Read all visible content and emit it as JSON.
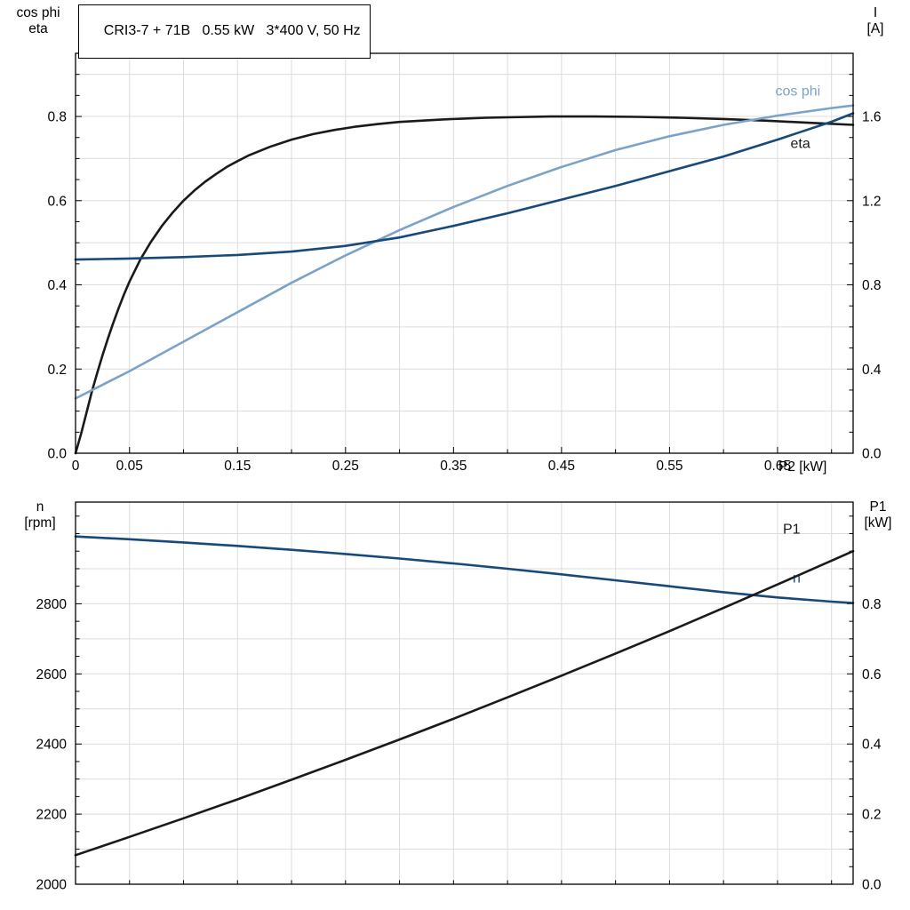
{
  "title_box": {
    "text": "CRI3-7 + 71B   0.55 kW   3*400 V, 50 Hz"
  },
  "colors": {
    "black": "#1a1a1a",
    "cosphi_blue": "#7ba3c9",
    "navy": "#17497a",
    "grid": "#dcdcdc",
    "axis": "#000000"
  },
  "chart_data": [
    {
      "type": "line",
      "name": "motor-performance",
      "x_axis": {
        "label": "P2 [kW]",
        "range": [
          0,
          0.72
        ],
        "grid_step": 0.05,
        "ticks": [
          {
            "v": 0,
            "label": "0"
          },
          {
            "v": 0.05,
            "label": "0.05"
          },
          {
            "v": 0.1,
            "label": ""
          },
          {
            "v": 0.15,
            "label": "0.15"
          },
          {
            "v": 0.2,
            "label": ""
          },
          {
            "v": 0.25,
            "label": "0.25"
          },
          {
            "v": 0.3,
            "label": ""
          },
          {
            "v": 0.35,
            "label": "0.35"
          },
          {
            "v": 0.4,
            "label": ""
          },
          {
            "v": 0.45,
            "label": "0.45"
          },
          {
            "v": 0.5,
            "label": ""
          },
          {
            "v": 0.55,
            "label": "0.55"
          },
          {
            "v": 0.6,
            "label": ""
          },
          {
            "v": 0.65,
            "label": "0.65"
          },
          {
            "v": 0.7,
            "label": ""
          }
        ]
      },
      "left_axis": {
        "title_lines": [
          "cos phi",
          "eta"
        ],
        "range": [
          0,
          0.95
        ],
        "grid_step": 0.1,
        "minor_step": 0.05,
        "ticks": [
          {
            "v": 0,
            "label": "0.0"
          },
          {
            "v": 0.2,
            "label": "0.2"
          },
          {
            "v": 0.4,
            "label": "0.4"
          },
          {
            "v": 0.6,
            "label": "0.6"
          },
          {
            "v": 0.8,
            "label": "0.8"
          }
        ]
      },
      "right_axis": {
        "title_lines": [
          "I",
          "[A]"
        ],
        "range": [
          0,
          1.9
        ],
        "minor_step": 0.1,
        "ticks": [
          {
            "v": 0,
            "label": "0.0"
          },
          {
            "v": 0.4,
            "label": "0.4"
          },
          {
            "v": 0.8,
            "label": "0.8"
          },
          {
            "v": 1.2,
            "label": "1.2"
          },
          {
            "v": 1.6,
            "label": "1.6"
          }
        ]
      },
      "series": [
        {
          "name": "eta",
          "axis": "left",
          "color": "black",
          "label": "eta",
          "label_pos": {
            "x": 0.662,
            "y": 0.725
          },
          "points": [
            [
              0,
              0
            ],
            [
              0.005,
              0.045
            ],
            [
              0.01,
              0.095
            ],
            [
              0.015,
              0.145
            ],
            [
              0.02,
              0.19
            ],
            [
              0.025,
              0.233
            ],
            [
              0.03,
              0.273
            ],
            [
              0.035,
              0.31
            ],
            [
              0.04,
              0.345
            ],
            [
              0.045,
              0.378
            ],
            [
              0.05,
              0.408
            ],
            [
              0.06,
              0.46
            ],
            [
              0.07,
              0.503
            ],
            [
              0.08,
              0.54
            ],
            [
              0.09,
              0.572
            ],
            [
              0.1,
              0.6
            ],
            [
              0.11,
              0.624
            ],
            [
              0.12,
              0.645
            ],
            [
              0.13,
              0.663
            ],
            [
              0.14,
              0.68
            ],
            [
              0.15,
              0.694
            ],
            [
              0.16,
              0.707
            ],
            [
              0.18,
              0.728
            ],
            [
              0.2,
              0.745
            ],
            [
              0.22,
              0.758
            ],
            [
              0.24,
              0.768
            ],
            [
              0.26,
              0.776
            ],
            [
              0.28,
              0.782
            ],
            [
              0.3,
              0.787
            ],
            [
              0.32,
              0.79
            ],
            [
              0.34,
              0.793
            ],
            [
              0.36,
              0.795
            ],
            [
              0.38,
              0.797
            ],
            [
              0.4,
              0.798
            ],
            [
              0.44,
              0.8
            ],
            [
              0.48,
              0.8
            ],
            [
              0.52,
              0.799
            ],
            [
              0.56,
              0.797
            ],
            [
              0.6,
              0.794
            ],
            [
              0.64,
              0.79
            ],
            [
              0.68,
              0.785
            ],
            [
              0.72,
              0.78
            ]
          ]
        },
        {
          "name": "cos-phi",
          "axis": "left",
          "color": "cosphi_blue",
          "label": "cos phi",
          "label_pos": {
            "x": 0.648,
            "y": 0.85
          },
          "points": [
            [
              0,
              0.13
            ],
            [
              0.05,
              0.195
            ],
            [
              0.1,
              0.265
            ],
            [
              0.15,
              0.335
            ],
            [
              0.2,
              0.405
            ],
            [
              0.25,
              0.47
            ],
            [
              0.3,
              0.53
            ],
            [
              0.35,
              0.585
            ],
            [
              0.4,
              0.635
            ],
            [
              0.45,
              0.68
            ],
            [
              0.5,
              0.72
            ],
            [
              0.55,
              0.753
            ],
            [
              0.6,
              0.78
            ],
            [
              0.65,
              0.802
            ],
            [
              0.7,
              0.82
            ],
            [
              0.72,
              0.826
            ]
          ]
        },
        {
          "name": "current",
          "axis": "right",
          "color": "navy",
          "label": "",
          "label_pos": null,
          "points": [
            [
              0,
              0.92
            ],
            [
              0.05,
              0.925
            ],
            [
              0.1,
              0.932
            ],
            [
              0.15,
              0.942
            ],
            [
              0.2,
              0.958
            ],
            [
              0.25,
              0.985
            ],
            [
              0.3,
              1.025
            ],
            [
              0.35,
              1.08
            ],
            [
              0.4,
              1.14
            ],
            [
              0.45,
              1.205
            ],
            [
              0.5,
              1.27
            ],
            [
              0.55,
              1.34
            ],
            [
              0.6,
              1.41
            ],
            [
              0.65,
              1.49
            ],
            [
              0.7,
              1.575
            ],
            [
              0.72,
              1.615
            ]
          ]
        }
      ]
    },
    {
      "type": "line",
      "name": "speed-power",
      "x_axis": {
        "label": "",
        "range": [
          0,
          0.72
        ],
        "grid_step": 0.05,
        "ticks": [
          {
            "v": 0.05,
            "label": ""
          },
          {
            "v": 0.1,
            "label": ""
          },
          {
            "v": 0.15,
            "label": ""
          },
          {
            "v": 0.2,
            "label": ""
          },
          {
            "v": 0.25,
            "label": ""
          },
          {
            "v": 0.3,
            "label": ""
          },
          {
            "v": 0.35,
            "label": ""
          },
          {
            "v": 0.4,
            "label": ""
          },
          {
            "v": 0.45,
            "label": ""
          },
          {
            "v": 0.5,
            "label": ""
          },
          {
            "v": 0.55,
            "label": ""
          },
          {
            "v": 0.6,
            "label": ""
          },
          {
            "v": 0.65,
            "label": ""
          },
          {
            "v": 0.7,
            "label": ""
          }
        ]
      },
      "left_axis": {
        "title_lines": [
          "n",
          "[rpm]"
        ],
        "range": [
          2000,
          3090
        ],
        "grid_step": 100,
        "minor_step": 50,
        "ticks": [
          {
            "v": 2000,
            "label": "2000"
          },
          {
            "v": 2200,
            "label": "2200"
          },
          {
            "v": 2400,
            "label": "2400"
          },
          {
            "v": 2600,
            "label": "2600"
          },
          {
            "v": 2800,
            "label": "2800"
          }
        ]
      },
      "right_axis": {
        "title_lines": [
          "P1",
          "[kW]"
        ],
        "range": [
          0,
          1.09
        ],
        "minor_step": 0.05,
        "ticks": [
          {
            "v": 0,
            "label": "0.0"
          },
          {
            "v": 0.2,
            "label": "0.2"
          },
          {
            "v": 0.4,
            "label": "0.4"
          },
          {
            "v": 0.6,
            "label": "0.6"
          },
          {
            "v": 0.8,
            "label": "0.8"
          }
        ]
      },
      "series": [
        {
          "name": "n",
          "axis": "left",
          "color": "navy",
          "label": "n",
          "label_pos": {
            "x": 0.664,
            "y": 2860
          },
          "points": [
            [
              0,
              2992
            ],
            [
              0.05,
              2984
            ],
            [
              0.1,
              2975
            ],
            [
              0.15,
              2965
            ],
            [
              0.2,
              2954
            ],
            [
              0.25,
              2942
            ],
            [
              0.3,
              2929
            ],
            [
              0.35,
              2915
            ],
            [
              0.4,
              2900
            ],
            [
              0.45,
              2884
            ],
            [
              0.5,
              2867
            ],
            [
              0.55,
              2850
            ],
            [
              0.6,
              2833
            ],
            [
              0.65,
              2818
            ],
            [
              0.7,
              2806
            ],
            [
              0.72,
              2802
            ]
          ]
        },
        {
          "name": "P1",
          "axis": "right",
          "color": "black",
          "label": "P1",
          "label_pos": {
            "x": 0.655,
            "y": 1.0
          },
          "points": [
            [
              0,
              0.083
            ],
            [
              0.05,
              0.135
            ],
            [
              0.1,
              0.188
            ],
            [
              0.15,
              0.242
            ],
            [
              0.2,
              0.298
            ],
            [
              0.25,
              0.355
            ],
            [
              0.3,
              0.413
            ],
            [
              0.35,
              0.472
            ],
            [
              0.4,
              0.533
            ],
            [
              0.45,
              0.595
            ],
            [
              0.5,
              0.658
            ],
            [
              0.55,
              0.722
            ],
            [
              0.6,
              0.788
            ],
            [
              0.65,
              0.855
            ],
            [
              0.7,
              0.923
            ],
            [
              0.72,
              0.95
            ]
          ]
        }
      ]
    }
  ]
}
